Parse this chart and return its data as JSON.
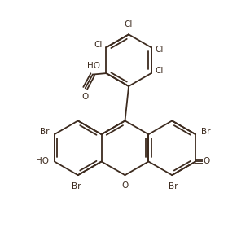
{
  "background_color": "#ffffff",
  "line_color": "#3d2b1f",
  "line_width": 1.3,
  "font_size": 7.5,
  "figsize": [
    3.07,
    3.06
  ],
  "dpi": 100,
  "xlim": [
    0,
    10
  ],
  "ylim": [
    0,
    10
  ]
}
